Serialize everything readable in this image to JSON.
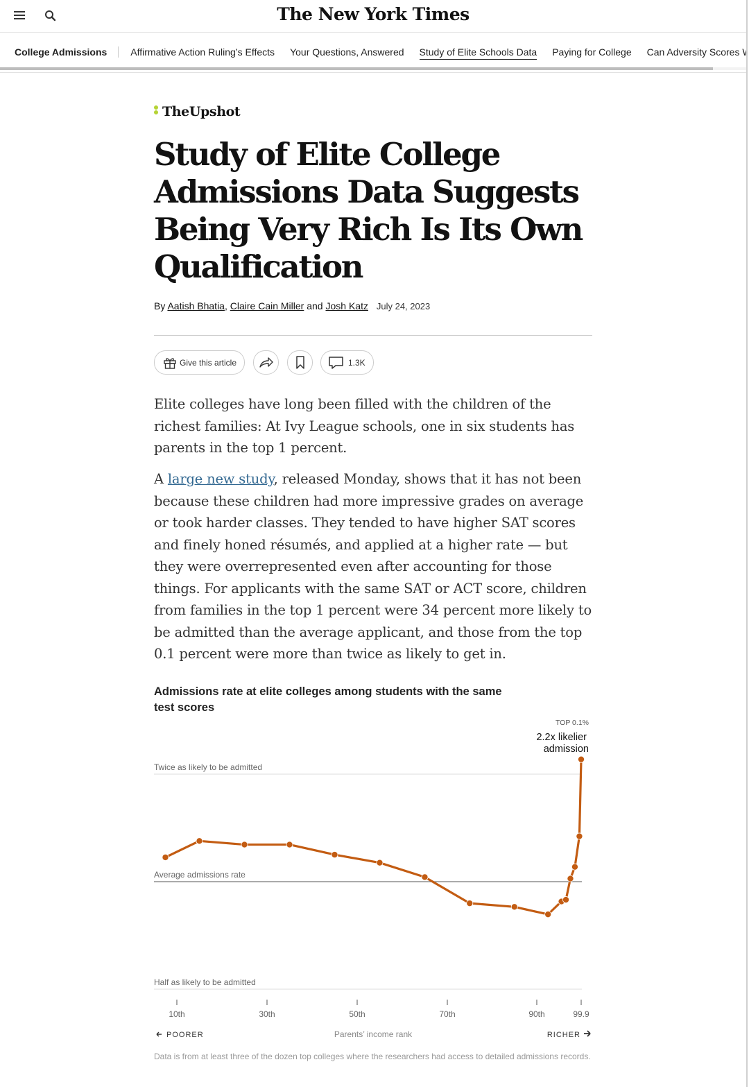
{
  "header": {
    "logo": "The New York Times",
    "menu_icon": "hamburger-menu-icon",
    "search_icon": "search-icon"
  },
  "nav": {
    "title": "College Admissions",
    "items": [
      {
        "label": "Affirmative Action Ruling’s Effects",
        "active": false
      },
      {
        "label": "Your Questions, Answered",
        "active": false
      },
      {
        "label": "Study of Elite Schools Data",
        "active": true
      },
      {
        "label": "Paying for College",
        "active": false
      },
      {
        "label": "Can Adversity Scores Work?",
        "active": false
      }
    ]
  },
  "article": {
    "section": "TheUpshot",
    "headline": "Study of Elite College Admissions Data Suggests Being Very Rich Is Its Own Qualification",
    "byline": {
      "by": "By",
      "authors": [
        "Aatish Bhatia",
        "Claire Cain Miller",
        "Josh Katz"
      ],
      "comma": ",",
      "and": "and",
      "date": "July 24, 2023"
    },
    "tools": {
      "gift_label": "Give this article",
      "comments_count": "1.3K"
    },
    "paragraph1": "Elite colleges have long been filled with the children of the richest families: At Ivy League schools, one in six students has parents in the top 1 percent.",
    "paragraph2": {
      "lead": "A ",
      "link": "large new study",
      "rest": ", released Monday, shows that it has not been because these children had more impressive grades on average or took harder classes. They tended to have higher SAT scores and finely honed résumés, and applied at a higher rate — but they were overrepresented even after accounting for those things. For applicants with the same SAT or ACT score, children from families in the top 1 percent were 34 percent more likely to be admitted than the average applicant, and those from the top 0.1 percent were more than twice as likely to get in."
    }
  },
  "chart_data": {
    "type": "line",
    "title": "Admissions rate at elite colleges among students with the same test scores",
    "xlabel": "Parents’ income rank",
    "x_axis_left": "POORER",
    "x_axis_right": "RICHER",
    "y_scale": "log",
    "ylim": [
      0.5,
      2.0
    ],
    "reference_lines": [
      {
        "value": 2.0,
        "label": "Twice as likely to be admitted"
      },
      {
        "value": 1.0,
        "label": "Average admissions rate"
      },
      {
        "value": 0.5,
        "label": "Half as likely to be admitted"
      }
    ],
    "xticks": [
      {
        "value": 10,
        "label": "10th"
      },
      {
        "value": 30,
        "label": "30th"
      },
      {
        "value": 50,
        "label": "50th"
      },
      {
        "value": 70,
        "label": "70th"
      },
      {
        "value": 90,
        "label": "90th"
      },
      {
        "value": 99.9,
        "label": "99.9"
      }
    ],
    "annotation": {
      "label": "TOP 0.1%",
      "text_line1": "2.2x likelier",
      "text_line2": "admission"
    },
    "color": "#c35c12",
    "points": [
      {
        "x": 5,
        "y": 1.17
      },
      {
        "x": 15,
        "y": 1.3
      },
      {
        "x": 25,
        "y": 1.27
      },
      {
        "x": 35,
        "y": 1.27
      },
      {
        "x": 45,
        "y": 1.19
      },
      {
        "x": 55,
        "y": 1.13
      },
      {
        "x": 65,
        "y": 1.03
      },
      {
        "x": 75,
        "y": 0.87
      },
      {
        "x": 85,
        "y": 0.85
      },
      {
        "x": 92.5,
        "y": 0.81
      },
      {
        "x": 95.5,
        "y": 0.88
      },
      {
        "x": 96.5,
        "y": 0.89
      },
      {
        "x": 97.5,
        "y": 1.02
      },
      {
        "x": 98.5,
        "y": 1.1
      },
      {
        "x": 99.5,
        "y": 1.34
      },
      {
        "x": 99.9,
        "y": 2.2
      }
    ],
    "note": "Data is from at least three of the dozen top colleges where the researchers had access to detailed admissions records."
  }
}
